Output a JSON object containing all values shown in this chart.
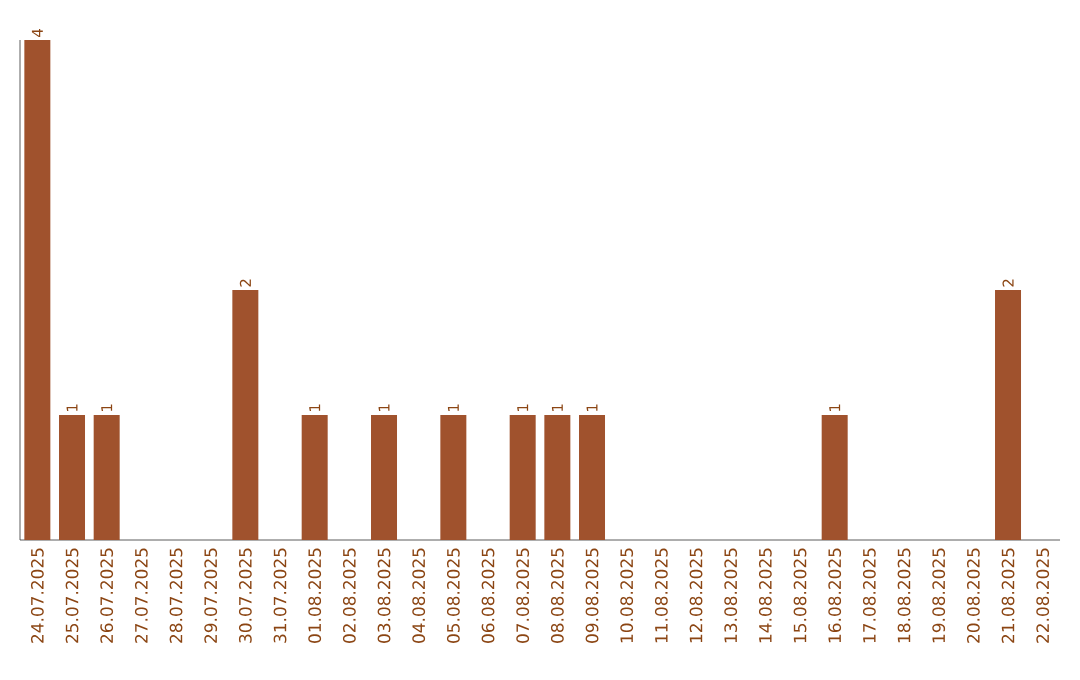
{
  "chart_data": {
    "type": "bar",
    "categories": [
      "24.07.2025",
      "25.07.2025",
      "26.07.2025",
      "27.07.2025",
      "28.07.2025",
      "29.07.2025",
      "30.07.2025",
      "31.07.2025",
      "01.08.2025",
      "02.08.2025",
      "03.08.2025",
      "04.08.2025",
      "05.08.2025",
      "06.08.2025",
      "07.08.2025",
      "08.08.2025",
      "09.08.2025",
      "10.08.2025",
      "11.08.2025",
      "12.08.2025",
      "13.08.2025",
      "14.08.2025",
      "15.08.2025",
      "16.08.2025",
      "17.08.2025",
      "18.08.2025",
      "19.08.2025",
      "20.08.2025",
      "21.08.2025",
      "22.08.2025"
    ],
    "values": [
      4,
      1,
      1,
      0,
      0,
      0,
      2,
      0,
      1,
      0,
      1,
      0,
      1,
      0,
      1,
      1,
      1,
      0,
      0,
      0,
      0,
      0,
      0,
      1,
      0,
      0,
      0,
      0,
      2,
      0
    ],
    "value_labels": [
      "4",
      "1",
      "1",
      null,
      null,
      null,
      "2",
      null,
      "1",
      null,
      "1",
      null,
      "1",
      null,
      "1",
      "1",
      "1",
      null,
      null,
      null,
      null,
      null,
      null,
      "1",
      null,
      null,
      null,
      null,
      "2",
      null
    ],
    "color": "#a0522d",
    "grid": false
  }
}
